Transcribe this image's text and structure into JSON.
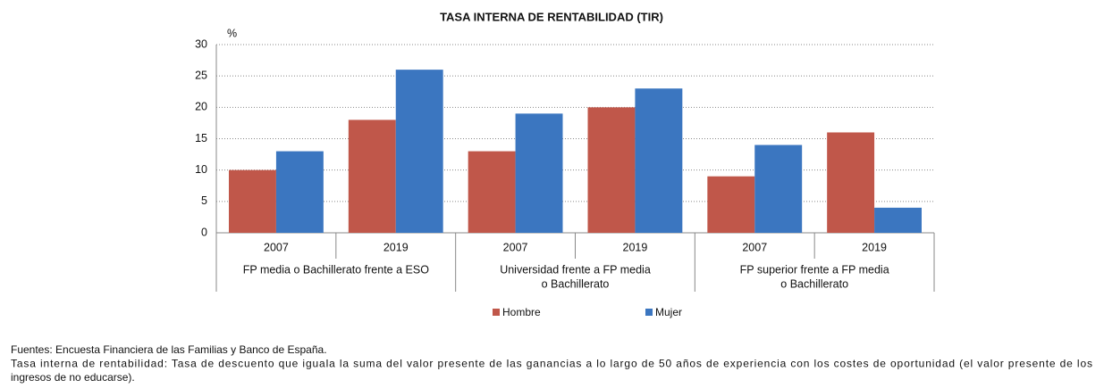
{
  "chart_data": {
    "type": "bar",
    "title": "TASA INTERNA DE RENTABILIDAD (TIR)",
    "y_unit": "%",
    "categories": [
      "2007",
      "2019",
      "2007",
      "2019",
      "2007",
      "2019"
    ],
    "groups": [
      [
        "FP media o Bachillerato frente a ESO"
      ],
      [
        "Universidad frente a FP media",
        "o Bachillerato"
      ],
      [
        "FP superior frente a FP media",
        "o Bachillerato"
      ]
    ],
    "series": [
      {
        "name": "Hombre",
        "color": "#c0574a",
        "values": [
          10,
          18,
          13,
          20,
          9,
          16
        ]
      },
      {
        "name": "Mujer",
        "color": "#3b76c0",
        "values": [
          13,
          26,
          19,
          23,
          14,
          4
        ]
      }
    ],
    "ylim": [
      0,
      30
    ],
    "yticks": [
      0,
      5,
      10,
      15,
      20,
      25,
      30
    ],
    "grid": true,
    "legend": "bottom",
    "notes": [
      "Fuentes: Encuesta Financiera de las Familias y Banco de España.",
      "Tasa interna de rentabilidad: Tasa de descuento que iguala la suma del valor presente de las ganancias a lo largo de 50 años de experiencia con los costes de oportunidad (el valor presente de los",
      "ingresos de no educarse)."
    ]
  }
}
